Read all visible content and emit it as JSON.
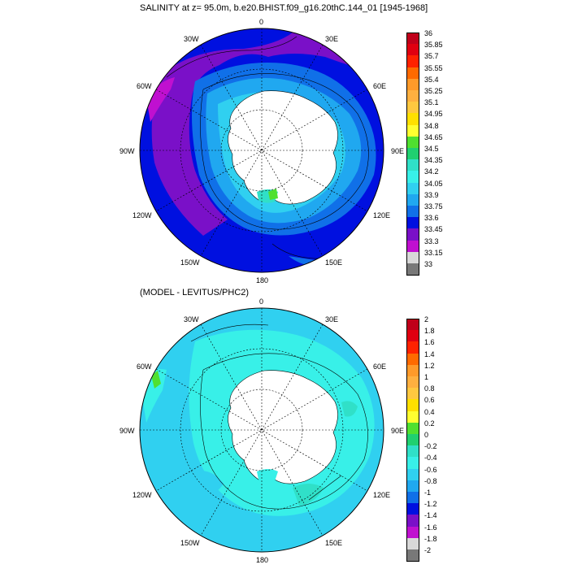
{
  "panels": [
    {
      "title": "SALINITY at z=  95.0m, b.e20.BHIST.f09_g16.20thC.144_01 [1945-1968]",
      "lon_labels": [
        "0",
        "30E",
        "60E",
        "90E",
        "120E",
        "150E",
        "180",
        "150W",
        "120W",
        "90W",
        "60W",
        "30W"
      ],
      "colorbar": {
        "labels": [
          "36",
          "35.85",
          "35.7",
          "35.55",
          "35.4",
          "35.25",
          "35.1",
          "34.95",
          "34.8",
          "34.65",
          "34.5",
          "34.35",
          "34.2",
          "34.05",
          "33.9",
          "33.75",
          "33.6",
          "33.45",
          "33.3",
          "33.15",
          "33"
        ],
        "colors": [
          "#c0001a",
          "#e00010",
          "#ff2200",
          "#ff6a00",
          "#ff9a2a",
          "#ffb040",
          "#ffc840",
          "#ffe000",
          "#ffff30",
          "#50e030",
          "#20d070",
          "#30e0c8",
          "#38f0e8",
          "#30d0f0",
          "#20a8f0",
          "#1070e8",
          "#0010e0",
          "#7a10c8",
          "#c010d0",
          "#d8d8d8",
          "#787878"
        ]
      }
    },
    {
      "title": "(MODEL - LEVITUS/PHC2)",
      "lon_labels": [
        "0",
        "30E",
        "60E",
        "90E",
        "120E",
        "150E",
        "180",
        "150W",
        "120W",
        "90W",
        "60W",
        "30W"
      ],
      "colorbar": {
        "labels": [
          "2",
          "1.8",
          "1.6",
          "1.4",
          "1.2",
          "1",
          "0.8",
          "0.6",
          "0.4",
          "0.2",
          "0",
          "-0.2",
          "-0.4",
          "-0.6",
          "-0.8",
          "-1",
          "-1.2",
          "-1.4",
          "-1.6",
          "-1.8",
          "-2"
        ],
        "colors": [
          "#c0001a",
          "#e00010",
          "#ff2200",
          "#ff6a00",
          "#ff9a2a",
          "#ffb040",
          "#ffc840",
          "#ffe000",
          "#ffff30",
          "#50e030",
          "#20d070",
          "#30e0c8",
          "#38f0e8",
          "#30d0f0",
          "#20a8f0",
          "#1070e8",
          "#0010e0",
          "#7a10c8",
          "#c010d0",
          "#d8d8d8",
          "#787878"
        ]
      }
    }
  ]
}
